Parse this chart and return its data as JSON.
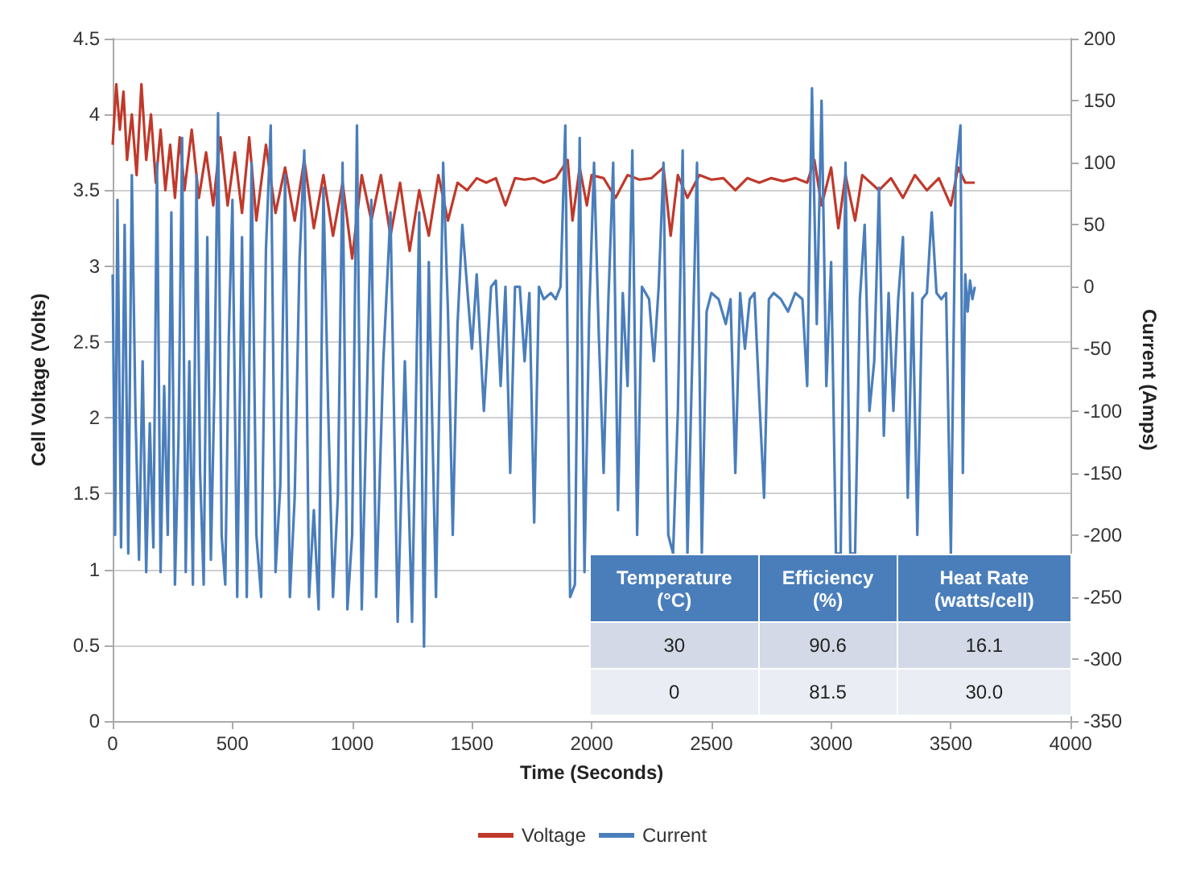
{
  "chart_data": {
    "type": "line",
    "xlabel": "Time (Seconds)",
    "ylabel": "Cell Voltage (Volts)",
    "y2label": "Current (Amps)",
    "xlim": [
      0,
      4000
    ],
    "xticks": [
      0,
      500,
      1000,
      1500,
      2000,
      2500,
      3000,
      3500,
      4000
    ],
    "ylim": [
      0,
      4.5
    ],
    "yticks": [
      0,
      0.5,
      1,
      1.5,
      2,
      2.5,
      3,
      3.5,
      4,
      4.5
    ],
    "y2lim": [
      -350,
      200
    ],
    "y2ticks": [
      -350,
      -300,
      -250,
      -200,
      -150,
      -100,
      -50,
      0,
      50,
      100,
      150,
      200
    ],
    "grid": "y",
    "legend": "bottom",
    "marker": "none",
    "line_style": "solid",
    "annotations": [
      "Temperature (°C)",
      "Efficiency (%)",
      "Heat Rate (watts/cell)",
      "30",
      "90.6",
      "16.1",
      "0",
      "81.5",
      "30.0"
    ],
    "series": [
      {
        "name": "Voltage",
        "color": "#c0392b",
        "x": [
          0,
          15,
          30,
          45,
          60,
          80,
          100,
          120,
          140,
          160,
          180,
          200,
          220,
          240,
          260,
          280,
          300,
          330,
          360,
          390,
          420,
          450,
          480,
          510,
          540,
          570,
          600,
          640,
          680,
          720,
          760,
          800,
          840,
          880,
          920,
          960,
          1000,
          1040,
          1080,
          1120,
          1160,
          1200,
          1240,
          1280,
          1320,
          1360,
          1400,
          1440,
          1480,
          1520,
          1560,
          1600,
          1640,
          1680,
          1720,
          1760,
          1800,
          1850,
          1900,
          1920,
          1950,
          1980,
          2000,
          2050,
          2100,
          2150,
          2200,
          2250,
          2300,
          2330,
          2360,
          2400,
          2450,
          2500,
          2550,
          2600,
          2650,
          2700,
          2750,
          2800,
          2850,
          2900,
          2930,
          2960,
          3000,
          3030,
          3060,
          3100,
          3130,
          3200,
          3250,
          3300,
          3350,
          3400,
          3450,
          3500,
          3530,
          3560,
          3600
        ],
        "values": [
          3.8,
          4.2,
          3.9,
          4.15,
          3.7,
          4.0,
          3.6,
          4.2,
          3.7,
          4.0,
          3.55,
          3.9,
          3.5,
          3.8,
          3.45,
          3.85,
          3.5,
          3.9,
          3.45,
          3.75,
          3.4,
          3.85,
          3.4,
          3.75,
          3.35,
          3.85,
          3.3,
          3.8,
          3.35,
          3.65,
          3.3,
          3.7,
          3.25,
          3.6,
          3.2,
          3.55,
          3.05,
          3.6,
          3.3,
          3.6,
          3.2,
          3.55,
          3.1,
          3.5,
          3.2,
          3.6,
          3.3,
          3.55,
          3.5,
          3.58,
          3.55,
          3.58,
          3.4,
          3.58,
          3.57,
          3.58,
          3.55,
          3.58,
          3.7,
          3.3,
          3.65,
          3.4,
          3.6,
          3.58,
          3.45,
          3.6,
          3.57,
          3.58,
          3.65,
          3.2,
          3.6,
          3.45,
          3.6,
          3.57,
          3.58,
          3.5,
          3.58,
          3.55,
          3.58,
          3.56,
          3.58,
          3.55,
          3.7,
          3.4,
          3.65,
          3.25,
          3.6,
          3.3,
          3.6,
          3.5,
          3.58,
          3.45,
          3.6,
          3.5,
          3.58,
          3.4,
          3.65,
          3.55,
          3.55
        ]
      },
      {
        "name": "Current",
        "color": "#4a7ebb",
        "axis": "y2",
        "x": [
          0,
          10,
          20,
          35,
          50,
          65,
          80,
          95,
          110,
          125,
          140,
          155,
          170,
          185,
          200,
          215,
          230,
          245,
          260,
          275,
          290,
          305,
          320,
          335,
          350,
          365,
          380,
          395,
          410,
          425,
          440,
          455,
          470,
          485,
          500,
          520,
          540,
          560,
          580,
          600,
          620,
          640,
          660,
          680,
          700,
          720,
          740,
          760,
          780,
          800,
          820,
          840,
          860,
          880,
          900,
          920,
          940,
          960,
          980,
          1000,
          1020,
          1040,
          1060,
          1080,
          1100,
          1130,
          1160,
          1190,
          1220,
          1250,
          1280,
          1300,
          1320,
          1350,
          1380,
          1400,
          1420,
          1440,
          1460,
          1480,
          1500,
          1520,
          1550,
          1580,
          1600,
          1620,
          1640,
          1660,
          1680,
          1700,
          1720,
          1740,
          1760,
          1780,
          1800,
          1830,
          1850,
          1870,
          1890,
          1910,
          1930,
          1950,
          1970,
          1990,
          2010,
          2030,
          2050,
          2070,
          2090,
          2110,
          2130,
          2150,
          2170,
          2190,
          2210,
          2240,
          2260,
          2280,
          2300,
          2320,
          2340,
          2360,
          2380,
          2400,
          2420,
          2440,
          2460,
          2480,
          2500,
          2530,
          2560,
          2580,
          2600,
          2620,
          2640,
          2660,
          2680,
          2700,
          2720,
          2740,
          2760,
          2790,
          2820,
          2850,
          2880,
          2900,
          2920,
          2940,
          2960,
          2980,
          3000,
          3020,
          3040,
          3060,
          3080,
          3100,
          3120,
          3140,
          3160,
          3180,
          3200,
          3220,
          3240,
          3260,
          3280,
          3300,
          3320,
          3340,
          3360,
          3380,
          3400,
          3420,
          3440,
          3460,
          3480,
          3500,
          3520,
          3540,
          3550,
          3560,
          3570,
          3580,
          3590,
          3600
        ],
        "values": [
          10,
          -200,
          70,
          -210,
          50,
          -215,
          90,
          -100,
          -220,
          -60,
          -230,
          -110,
          -210,
          100,
          -230,
          -80,
          -200,
          60,
          -240,
          -120,
          120,
          -230,
          -60,
          -240,
          90,
          -150,
          -240,
          40,
          -220,
          -80,
          140,
          -200,
          -240,
          -40,
          70,
          -250,
          40,
          -250,
          100,
          -200,
          -250,
          30,
          130,
          -230,
          -160,
          90,
          -250,
          -170,
          20,
          110,
          -250,
          -180,
          -260,
          80,
          -100,
          -250,
          -170,
          100,
          -260,
          -200,
          130,
          -260,
          -100,
          70,
          -250,
          -60,
          60,
          -270,
          -60,
          -270,
          60,
          -290,
          20,
          -250,
          100,
          -20,
          -200,
          -30,
          50,
          0,
          -50,
          10,
          -100,
          0,
          5,
          -80,
          0,
          -150,
          0,
          0,
          -60,
          -5,
          -190,
          0,
          -10,
          -5,
          -10,
          0,
          130,
          -250,
          -240,
          120,
          -230,
          -20,
          100,
          -40,
          -150,
          -10,
          100,
          -180,
          -5,
          -80,
          110,
          -200,
          0,
          -10,
          -60,
          0,
          100,
          -200,
          -215,
          -100,
          110,
          -215,
          -60,
          100,
          -215,
          -20,
          -5,
          -10,
          -30,
          -10,
          -150,
          -5,
          -50,
          -10,
          -5,
          -90,
          -170,
          -10,
          -5,
          -10,
          -20,
          -5,
          -10,
          -80,
          160,
          -30,
          150,
          -80,
          20,
          -215,
          -215,
          100,
          -215,
          -215,
          -10,
          50,
          -100,
          -60,
          80,
          -120,
          -5,
          -100,
          -10,
          40,
          -170,
          -5,
          -200,
          -10,
          -5,
          60,
          -5,
          -10,
          -5,
          -215,
          90,
          130,
          -150,
          10,
          -20,
          5,
          -10,
          0
        ]
      }
    ]
  }
}
